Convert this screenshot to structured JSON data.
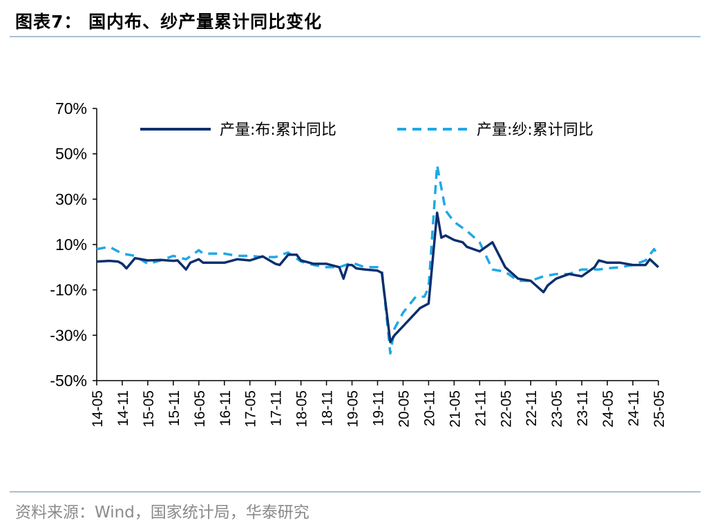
{
  "figure": {
    "title": "图表7：  国内布、纱产量累计同比变化",
    "source": "资料来源：Wind，国家统计局，华泰研究"
  },
  "colors": {
    "series_cloth": "#0d2e6e",
    "series_yarn": "#1fa8e6",
    "axis": "#000000",
    "rule": "#a9bed3"
  },
  "chart_data": {
    "type": "line",
    "ylim": [
      -50,
      70
    ],
    "yticks": [
      "70%",
      "50%",
      "30%",
      "10%",
      "-10%",
      "-30%",
      "-50%"
    ],
    "ytick_values": [
      70,
      50,
      30,
      10,
      -10,
      -30,
      -50
    ],
    "xticks": [
      "14-05",
      "14-11",
      "15-05",
      "15-11",
      "16-05",
      "16-11",
      "17-05",
      "17-11",
      "18-05",
      "18-11",
      "19-05",
      "19-11",
      "20-05",
      "20-11",
      "21-05",
      "21-11",
      "22-05",
      "22-11",
      "23-05",
      "23-11",
      "24-05",
      "24-11",
      "25-05"
    ],
    "x_start": "14-05",
    "x_end": "25-05",
    "legend_position": "top",
    "grid": false,
    "series": [
      {
        "name": "产量:布:累计同比",
        "style": "solid",
        "points": [
          [
            "14-05",
            2.5
          ],
          [
            "14-08",
            2.8
          ],
          [
            "14-10",
            2.5
          ],
          [
            "14-11",
            1.5
          ],
          [
            "14-12",
            -0.5
          ],
          [
            "15-02",
            4
          ],
          [
            "15-05",
            3
          ],
          [
            "15-08",
            3.2
          ],
          [
            "15-11",
            2.8
          ],
          [
            "15-12",
            3
          ],
          [
            "16-02",
            -1
          ],
          [
            "16-03",
            2
          ],
          [
            "16-05",
            3.5
          ],
          [
            "16-06",
            2
          ],
          [
            "16-08",
            2
          ],
          [
            "16-11",
            2
          ],
          [
            "17-02",
            3.5
          ],
          [
            "17-05",
            3
          ],
          [
            "17-08",
            4.8
          ],
          [
            "17-11",
            1.5
          ],
          [
            "17-12",
            1
          ],
          [
            "18-02",
            5.5
          ],
          [
            "18-04",
            5.5
          ],
          [
            "18-05",
            3
          ],
          [
            "18-08",
            1.5
          ],
          [
            "18-11",
            1.5
          ],
          [
            "19-02",
            0
          ],
          [
            "19-03",
            -5
          ],
          [
            "19-04",
            1
          ],
          [
            "19-05",
            1
          ],
          [
            "19-06",
            -0.5
          ],
          [
            "19-08",
            -1
          ],
          [
            "19-11",
            -1.5
          ],
          [
            "19-12",
            -2.5
          ],
          [
            "20-02",
            -33
          ],
          [
            "20-03",
            -30
          ],
          [
            "20-05",
            -26
          ],
          [
            "20-07",
            -22
          ],
          [
            "20-09",
            -18
          ],
          [
            "20-11",
            -16
          ],
          [
            "21-01",
            24
          ],
          [
            "21-02",
            13
          ],
          [
            "21-03",
            14
          ],
          [
            "21-05",
            12
          ],
          [
            "21-07",
            11
          ],
          [
            "21-08",
            9
          ],
          [
            "21-11",
            7
          ],
          [
            "22-02",
            11
          ],
          [
            "22-05",
            0
          ],
          [
            "22-08",
            -5
          ],
          [
            "22-11",
            -6
          ],
          [
            "23-02",
            -11
          ],
          [
            "23-03",
            -8
          ],
          [
            "23-05",
            -5
          ],
          [
            "23-08",
            -3
          ],
          [
            "23-11",
            -4
          ],
          [
            "24-02",
            0
          ],
          [
            "24-03",
            3
          ],
          [
            "24-05",
            2
          ],
          [
            "24-08",
            2
          ],
          [
            "24-11",
            1
          ],
          [
            "25-02",
            1
          ],
          [
            "25-03",
            3.5
          ],
          [
            "25-05",
            0
          ]
        ]
      },
      {
        "name": "产量:纱:累计同比",
        "style": "dashed",
        "points": [
          [
            "14-05",
            8
          ],
          [
            "14-08",
            9
          ],
          [
            "14-10",
            7
          ],
          [
            "14-11",
            6
          ],
          [
            "15-02",
            5
          ],
          [
            "15-05",
            1.5
          ],
          [
            "15-08",
            3
          ],
          [
            "15-11",
            5
          ],
          [
            "15-12",
            4.5
          ],
          [
            "16-02",
            3.5
          ],
          [
            "16-05",
            7.5
          ],
          [
            "16-06",
            6
          ],
          [
            "16-08",
            6
          ],
          [
            "16-11",
            6
          ],
          [
            "17-02",
            5
          ],
          [
            "17-05",
            5
          ],
          [
            "17-08",
            4.5
          ],
          [
            "17-11",
            4.5
          ],
          [
            "18-02",
            6.5
          ],
          [
            "18-05",
            2.5
          ],
          [
            "18-08",
            1
          ],
          [
            "18-11",
            0
          ],
          [
            "19-02",
            0
          ],
          [
            "19-05",
            2
          ],
          [
            "19-08",
            0
          ],
          [
            "19-11",
            0
          ],
          [
            "19-12",
            -1
          ],
          [
            "20-02",
            -38
          ],
          [
            "20-03",
            -27
          ],
          [
            "20-05",
            -20
          ],
          [
            "20-08",
            -13
          ],
          [
            "20-10",
            -13
          ],
          [
            "20-11",
            -9
          ],
          [
            "21-01",
            45
          ],
          [
            "21-03",
            25
          ],
          [
            "21-05",
            20
          ],
          [
            "21-08",
            16
          ],
          [
            "21-11",
            11
          ],
          [
            "22-02",
            -1
          ],
          [
            "22-05",
            -2
          ],
          [
            "22-08",
            -6
          ],
          [
            "22-11",
            -6
          ],
          [
            "23-02",
            -4
          ],
          [
            "23-05",
            -3
          ],
          [
            "23-08",
            -3
          ],
          [
            "23-11",
            -1
          ],
          [
            "24-02",
            -1
          ],
          [
            "24-03",
            -1
          ],
          [
            "24-05",
            -0.5
          ],
          [
            "24-08",
            0
          ],
          [
            "24-11",
            1
          ],
          [
            "25-02",
            3
          ],
          [
            "25-04",
            8
          ],
          [
            "25-05",
            5
          ]
        ]
      }
    ]
  }
}
